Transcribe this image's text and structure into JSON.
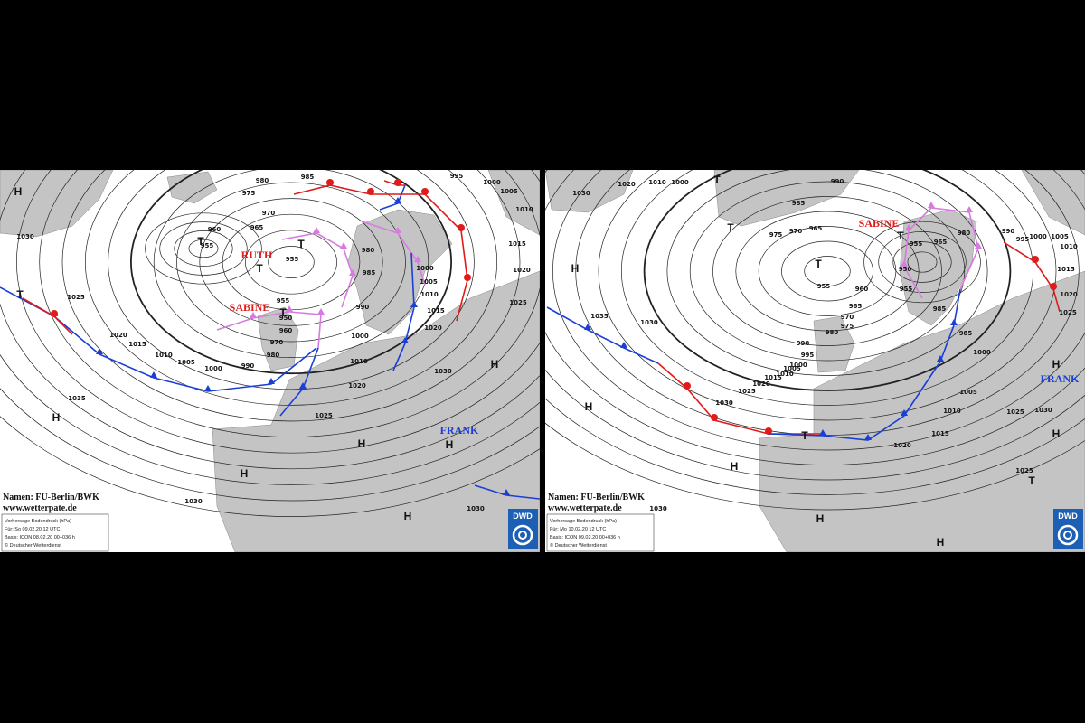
{
  "maps": [
    {
      "credit": "Namen: FU-Berlin/BWK",
      "url": "www.wetterpate.de",
      "info": [
        "Vorhersage Bodendruck (hPa)",
        "Für: So 09.02.20 12 UTC",
        "Basis: ICON 08.02.20 00+036 h",
        "© Deutscher Wetterdienst"
      ],
      "logo": "DWD",
      "systems": [
        "RUTH",
        "SABINE",
        "FRANK"
      ],
      "centers": [
        "H",
        "T",
        "H",
        "T",
        "T",
        "T",
        "T",
        "H",
        "H",
        "H",
        "H",
        "H"
      ],
      "pressure_labels": [
        980,
        985,
        975,
        970,
        965,
        960,
        955,
        955,
        980,
        985,
        990,
        955,
        950,
        960,
        970,
        980,
        990,
        1000,
        1005,
        1010,
        1015,
        1020,
        1025,
        1030,
        1035,
        1000,
        1010,
        1020,
        1025,
        1030,
        1030,
        1030,
        995,
        1000,
        1005,
        1010,
        1015,
        1020,
        1025,
        1000,
        1005,
        1010,
        1015,
        1020
      ]
    },
    {
      "credit": "Namen: FU-Berlin/BWK",
      "url": "www.wetterpate.de",
      "info": [
        "Vorhersage Bodendruck (hPa)",
        "Für: Mo 10.02.20 12 UTC",
        "Basis: ICON 09.02.20 00+036 h",
        "© Deutscher Wetterdienst"
      ],
      "logo": "DWD",
      "systems": [
        "SABINE",
        "FRANK"
      ],
      "centers": [
        "H",
        "T",
        "T",
        "T",
        "T",
        "H",
        "H",
        "H",
        "H",
        "H",
        "H",
        "T",
        "T"
      ],
      "pressure_labels": [
        1030,
        1020,
        1010,
        1000,
        990,
        985,
        975,
        970,
        965,
        955,
        960,
        965,
        970,
        975,
        980,
        990,
        995,
        1000,
        1005,
        1010,
        1015,
        1020,
        1025,
        1030,
        1035,
        1030,
        950,
        955,
        955,
        965,
        980,
        985,
        985,
        990,
        995,
        1000,
        1005,
        1010,
        1015,
        1020,
        1025,
        1000,
        1005,
        1010,
        1015,
        1020,
        1025,
        1030,
        1025,
        1030
      ]
    }
  ]
}
